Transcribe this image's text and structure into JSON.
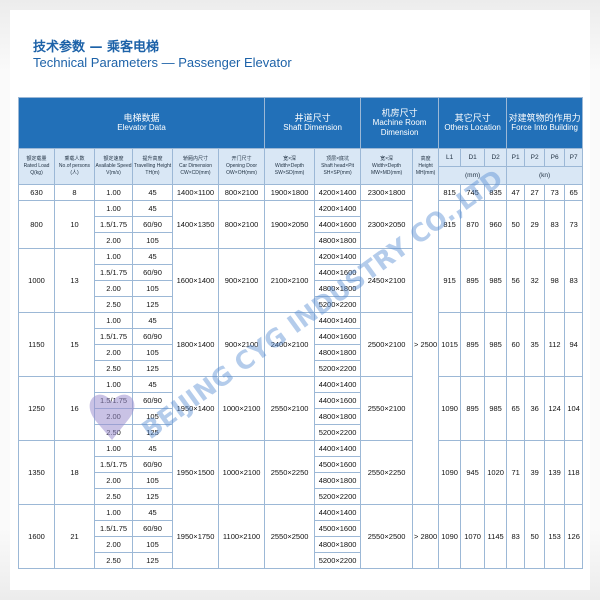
{
  "header": {
    "title_zh": "技术参数 — 乘客电梯",
    "title_en": "Technical Parameters — Passenger Elevator"
  },
  "watermark": "BEIJING CYG INDUSTRY CO.,LTD",
  "table": {
    "group_headers": [
      {
        "zh": "电梯数据",
        "en": "Elevator Data"
      },
      {
        "zh": "井道尺寸",
        "en": "Shaft Dimension"
      },
      {
        "zh": "机房尺寸",
        "en": "Machine Room Dimension"
      },
      {
        "zh": "其它尺寸",
        "en": "Others Location"
      },
      {
        "zh": "对建筑物的作用力",
        "en": "Force Into Building"
      }
    ],
    "column_headers": [
      {
        "zh": "额定载量",
        "en": "Rated Load",
        "unit": "Q(kg)"
      },
      {
        "zh": "乘载人数",
        "en": "No.of persons",
        "unit": "(人)"
      },
      {
        "zh": "额定速度",
        "en": "Available Speed",
        "unit": "V(m/s)"
      },
      {
        "zh": "提升高度",
        "en": "Travelling Height",
        "unit": "TH(m)"
      },
      {
        "zh": "轿厢内尺寸",
        "en": "Car Dimension",
        "unit": "CW×CD(mm)"
      },
      {
        "zh": "开门尺寸",
        "en": "Opening Door",
        "unit": "OW×OH(mm)"
      },
      {
        "zh": "宽×深",
        "en": "Width×Depth",
        "unit": "SW×SD(mm)"
      },
      {
        "zh": "顶层×底坑",
        "en": "Shaft head×Pit",
        "unit": "SH×SP(mm)"
      },
      {
        "zh": "宽×深",
        "en": "Width×Depth",
        "unit": "MW×MD(mm)"
      },
      {
        "zh": "高度",
        "en": "Height",
        "unit": "MH(mm)"
      }
    ],
    "location_columns": [
      "L1",
      "D1",
      "D2"
    ],
    "force_columns": [
      "P1",
      "P2",
      "P6",
      "P7"
    ],
    "mm_unit": "(mm)",
    "kn_unit": "(kn)",
    "groups": [
      {
        "load": 630,
        "persons": 8,
        "speeds": [
          "1.00"
        ],
        "heights": [
          45
        ],
        "car": "1400×1100",
        "door": "800×2100",
        "shaft": "1900×1800",
        "head_pit": [
          "4200×1400"
        ],
        "machine_room": "2300×1800",
        "machine_height": "> 2500",
        "others": [
          815,
          745,
          835
        ],
        "force": [
          47,
          27,
          73,
          65
        ]
      },
      {
        "load": 800,
        "persons": 10,
        "speeds": [
          "1.00",
          "1.5/1.75",
          "2.00"
        ],
        "heights": [
          45,
          "60/90",
          105
        ],
        "car": "1400×1350",
        "door": "800×2100",
        "shaft": "1900×2050",
        "head_pit": [
          "4200×1400",
          "4400×1600",
          "4800×1800"
        ],
        "machine_room": "2300×2050",
        "others": [
          815,
          870,
          960
        ],
        "force": [
          50,
          29,
          83,
          73
        ]
      },
      {
        "load": 1000,
        "persons": 13,
        "speeds": [
          "1.00",
          "1.5/1.75",
          "2.00",
          "2.50"
        ],
        "heights": [
          45,
          "60/90",
          105,
          125
        ],
        "car": "1600×1400",
        "door": "900×2100",
        "shaft": "2100×2100",
        "head_pit": [
          "4200×1400",
          "4400×1600",
          "4800×1800",
          "5200×2200"
        ],
        "machine_room": "2450×2100",
        "others": [
          915,
          895,
          985
        ],
        "force": [
          56,
          32,
          98,
          83
        ]
      },
      {
        "load": 1150,
        "persons": 15,
        "speeds": [
          "1.00",
          "1.5/1.75",
          "2.00",
          "2.50"
        ],
        "heights": [
          45,
          "60/90",
          105,
          125
        ],
        "car": "1800×1400",
        "door": "900×2100",
        "shaft": "2400×2100",
        "head_pit": [
          "4400×1400",
          "4400×1600",
          "4800×1800",
          "5200×2200"
        ],
        "machine_room": "2500×2100",
        "others": [
          1015,
          895,
          985
        ],
        "force": [
          60,
          35,
          112,
          94
        ]
      },
      {
        "load": 1250,
        "persons": 16,
        "speeds": [
          "1.00",
          "1.5/1.75",
          "2.00",
          "2.50"
        ],
        "heights": [
          45,
          "60/90",
          105,
          125
        ],
        "car": "1950×1400",
        "door": "1000×2100",
        "shaft": "2550×2100",
        "head_pit": [
          "4400×1400",
          "4400×1600",
          "4800×1800",
          "5200×2200"
        ],
        "machine_room": "2550×2100",
        "others": [
          1090,
          895,
          985
        ],
        "force": [
          65,
          36,
          124,
          104
        ]
      },
      {
        "load": 1350,
        "persons": 18,
        "speeds": [
          "1.00",
          "1.5/1.75",
          "2.00",
          "2.50"
        ],
        "heights": [
          45,
          "60/90",
          105,
          125
        ],
        "car": "1950×1500",
        "door": "1000×2100",
        "shaft": "2550×2250",
        "head_pit": [
          "4400×1400",
          "4500×1600",
          "4800×1800",
          "5200×2200"
        ],
        "machine_room": "2550×2250",
        "others": [
          1090,
          945,
          1020
        ],
        "force": [
          71,
          39,
          139,
          118
        ]
      },
      {
        "load": 1600,
        "persons": 21,
        "speeds": [
          "1.00",
          "1.5/1.75",
          "2.00",
          "2.50"
        ],
        "heights": [
          45,
          "60/90",
          105,
          125
        ],
        "car": "1950×1750",
        "door": "1100×2100",
        "shaft": "2550×2500",
        "head_pit": [
          "4400×1400",
          "4500×1600",
          "4800×1800",
          "5200×2200"
        ],
        "machine_room": "2550×2500",
        "machine_height": "> 2800",
        "others": [
          1090,
          1070,
          1145
        ],
        "force": [
          83,
          50,
          153,
          126
        ]
      }
    ]
  }
}
